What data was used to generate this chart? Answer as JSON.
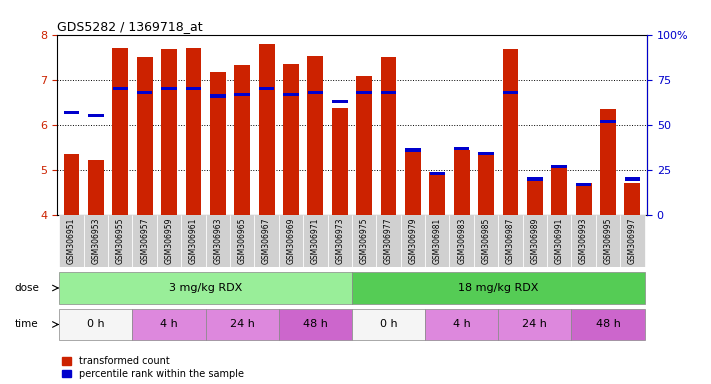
{
  "title": "GDS5282 / 1369718_at",
  "samples": [
    "GSM306951",
    "GSM306953",
    "GSM306955",
    "GSM306957",
    "GSM306959",
    "GSM306961",
    "GSM306963",
    "GSM306965",
    "GSM306967",
    "GSM306969",
    "GSM306971",
    "GSM306973",
    "GSM306975",
    "GSM306977",
    "GSM306979",
    "GSM306981",
    "GSM306983",
    "GSM306985",
    "GSM306987",
    "GSM306989",
    "GSM306991",
    "GSM306993",
    "GSM306995",
    "GSM306997"
  ],
  "transformed_count": [
    5.35,
    5.22,
    7.7,
    7.5,
    7.68,
    7.7,
    7.18,
    7.32,
    7.78,
    7.35,
    7.52,
    6.38,
    7.08,
    7.5,
    5.47,
    4.95,
    5.45,
    5.35,
    7.68,
    4.82,
    5.05,
    4.72,
    6.35,
    4.72
  ],
  "percentile_rank": [
    57,
    55,
    70,
    68,
    70,
    70,
    66,
    67,
    70,
    67,
    68,
    63,
    68,
    68,
    36,
    23,
    37,
    34,
    68,
    20,
    27,
    17,
    52,
    20
  ],
  "bar_color": "#cc2200",
  "blue_color": "#0000cc",
  "ymin": 4,
  "ymax": 8,
  "yticks": [
    4,
    5,
    6,
    7,
    8
  ],
  "right_yticks": [
    0,
    25,
    50,
    75,
    100
  ],
  "right_yticklabels": [
    "0",
    "25",
    "50",
    "75",
    "100%"
  ],
  "dose_groups": [
    {
      "label": "3 mg/kg RDX",
      "start": 0,
      "end": 12,
      "color": "#99ee99"
    },
    {
      "label": "18 mg/kg RDX",
      "start": 12,
      "end": 24,
      "color": "#55cc55"
    }
  ],
  "time_groups": [
    {
      "label": "0 h",
      "start": 0,
      "end": 3,
      "color": "#f0f0f0"
    },
    {
      "label": "4 h",
      "start": 3,
      "end": 6,
      "color": "#dd88dd"
    },
    {
      "label": "24 h",
      "start": 6,
      "end": 9,
      "color": "#dd88dd"
    },
    {
      "label": "48 h",
      "start": 9,
      "end": 12,
      "color": "#cc66cc"
    },
    {
      "label": "0 h",
      "start": 12,
      "end": 15,
      "color": "#f0f0f0"
    },
    {
      "label": "4 h",
      "start": 15,
      "end": 18,
      "color": "#dd88dd"
    },
    {
      "label": "24 h",
      "start": 18,
      "end": 21,
      "color": "#dd88dd"
    },
    {
      "label": "48 h",
      "start": 21,
      "end": 24,
      "color": "#cc66cc"
    }
  ],
  "dose_label": "dose",
  "time_label": "time",
  "legend_red": "transformed count",
  "legend_blue": "percentile rank within the sample",
  "tick_bg_odd": "#dddddd",
  "tick_bg_even": "#cccccc"
}
